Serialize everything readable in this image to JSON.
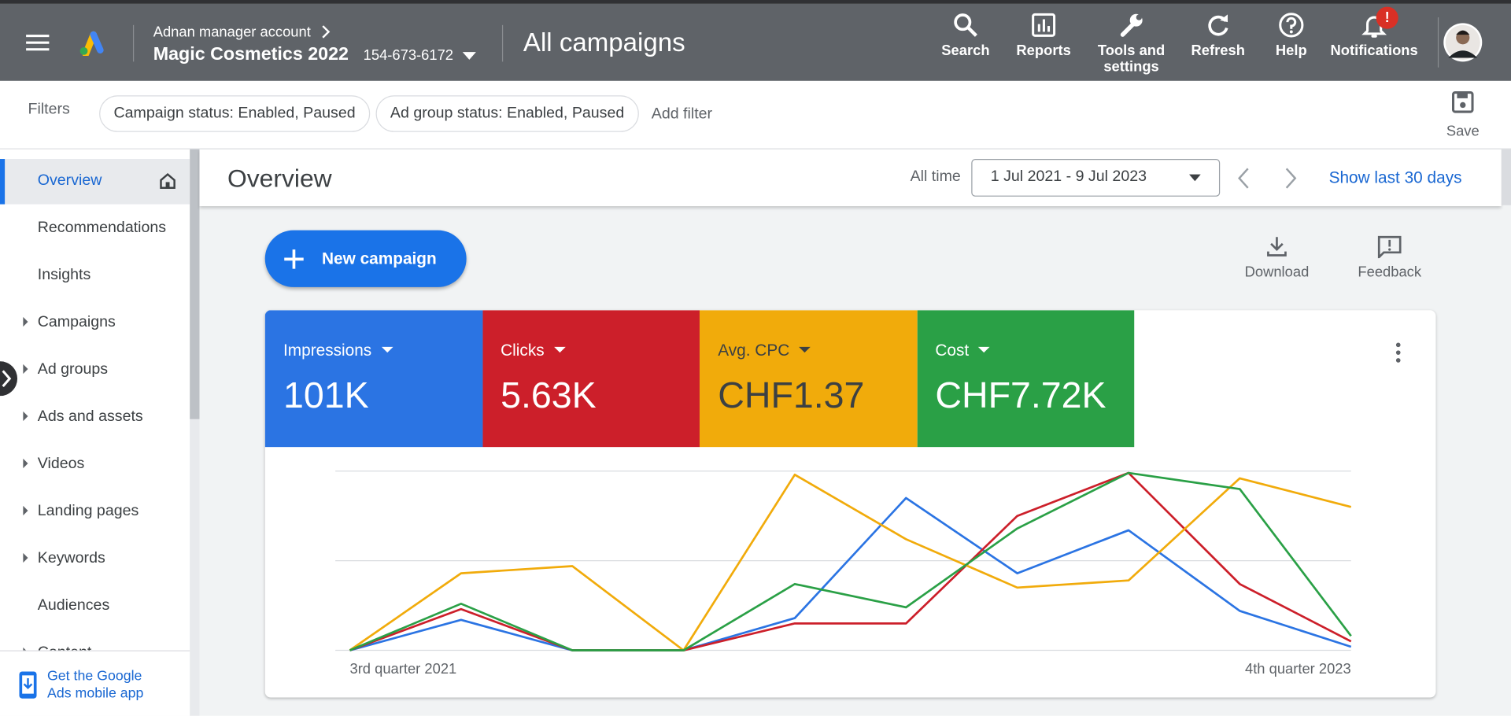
{
  "header": {
    "account_parent": "Adnan manager account",
    "account_name": "Magic Cosmetics 2022",
    "account_id": "154-673-6172",
    "page_title": "All campaigns",
    "nav": [
      "Search",
      "Reports",
      "Tools and settings",
      "Refresh",
      "Help",
      "Notifications"
    ],
    "notification_badge": "!"
  },
  "filters": {
    "label": "Filters",
    "chips": [
      "Campaign status: Enabled, Paused",
      "Ad group status: Enabled, Paused"
    ],
    "add": "Add filter",
    "save": "Save"
  },
  "sidebar": {
    "items": [
      "Overview",
      "Recommendations",
      "Insights",
      "Campaigns",
      "Ad groups",
      "Ads and assets",
      "Videos",
      "Landing pages",
      "Keywords",
      "Audiences",
      "Content"
    ],
    "app_link": "Get the Google Ads mobile app"
  },
  "overview": {
    "title": "Overview",
    "range_label": "All time",
    "date_range": "1 Jul 2021 - 9 Jul 2023",
    "show_last": "Show last 30 days",
    "new_campaign": "New campaign",
    "download": "Download",
    "feedback": "Feedback"
  },
  "chart_data": {
    "type": "line",
    "categories": [
      "3rd quarter 2021",
      null,
      null,
      null,
      null,
      null,
      null,
      null,
      null,
      "4th quarter 2023"
    ],
    "ylim": [
      0,
      100
    ],
    "yticks": [
      0,
      50,
      100
    ],
    "grid": true,
    "series": [
      {
        "name": "Impressions",
        "summary": "101K",
        "color": "#2b74e3",
        "text_color": "#ffffff",
        "values": [
          0,
          17,
          0,
          0,
          18,
          85,
          43,
          67,
          22,
          2
        ]
      },
      {
        "name": "Clicks",
        "summary": "5.63K",
        "color": "#cc1f2a",
        "text_color": "#ffffff",
        "values": [
          0,
          23,
          0,
          0,
          15,
          15,
          75,
          99,
          37,
          5
        ]
      },
      {
        "name": "Avg. CPC",
        "summary": "CHF1.37",
        "color": "#f1ab0b",
        "text_color": "#3c4043",
        "values": [
          0,
          43,
          47,
          0,
          98,
          62,
          35,
          39,
          96,
          80
        ]
      },
      {
        "name": "Cost",
        "summary": "CHF7.72K",
        "color": "#2aa046",
        "text_color": "#ffffff",
        "values": [
          0,
          26,
          0,
          0,
          37,
          24,
          68,
          99,
          90,
          8
        ]
      }
    ]
  }
}
